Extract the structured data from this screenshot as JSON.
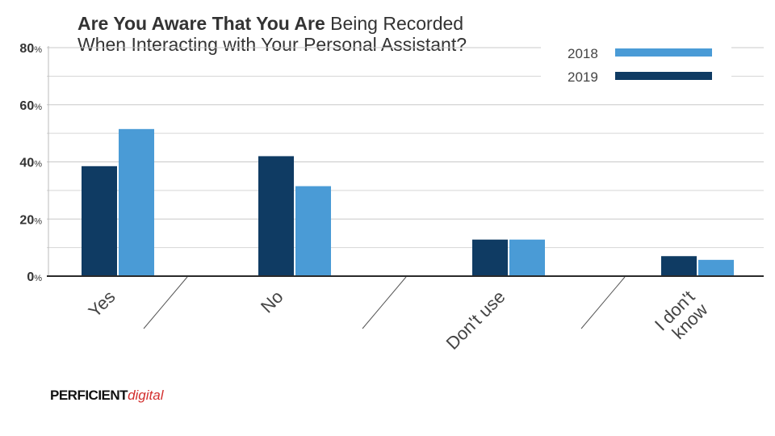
{
  "title": {
    "bold": "Are You Aware That You Are",
    "rest": "Being Recorded",
    "line2": "When Interacting with Your Personal Assistant?"
  },
  "logo": {
    "part1": "PERFICIENT",
    "part2": "digital",
    "accent": "#d3302f"
  },
  "chart_data": {
    "type": "bar",
    "categories": [
      "Yes",
      "No",
      "Don't use",
      "I don't know"
    ],
    "category_lines": [
      [
        "Yes"
      ],
      [
        "No"
      ],
      [
        "Don't use"
      ],
      [
        "I don't",
        "know"
      ]
    ],
    "series": [
      {
        "name": "2019",
        "color": "#0f3b63",
        "values": [
          38.5,
          42,
          12.8,
          7
        ]
      },
      {
        "name": "2018",
        "color": "#4a9bd6",
        "values": [
          51.5,
          31.5,
          12.8,
          5.7
        ]
      }
    ],
    "legend_order": [
      "2018",
      "2019"
    ],
    "legend_placement": "top-right",
    "yticks": [
      {
        "num": "0",
        "unit": "%",
        "value": 0
      },
      {
        "num": "20",
        "unit": "%",
        "value": 20
      },
      {
        "num": "40",
        "unit": "%",
        "value": 40
      },
      {
        "num": "60",
        "unit": "%",
        "value": 60
      },
      {
        "num": "80",
        "unit": "%",
        "value": 80
      }
    ],
    "ylim": [
      0,
      80
    ],
    "minor_grid_step": 10,
    "grid": true,
    "xlabel": "",
    "ylabel": ""
  }
}
